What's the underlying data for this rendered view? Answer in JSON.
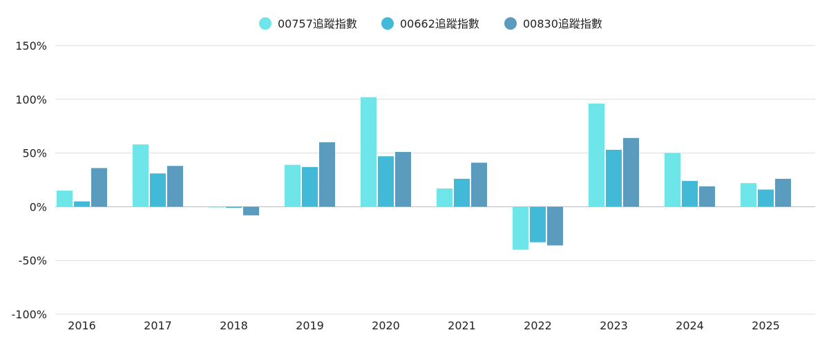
{
  "chart_data": {
    "type": "bar",
    "categories": [
      "2016",
      "2017",
      "2018",
      "2019",
      "2020",
      "2021",
      "2022",
      "2023",
      "2024",
      "2025"
    ],
    "series": [
      {
        "name": "00757追蹤指數",
        "color": "#6ee5e8",
        "values": [
          15,
          58,
          0,
          39,
          102,
          17,
          -40,
          96,
          50,
          22
        ]
      },
      {
        "name": "00662追蹤指數",
        "color": "#43b9d8",
        "values": [
          5,
          31,
          -1,
          37,
          47,
          26,
          -33,
          53,
          24,
          16
        ]
      },
      {
        "name": "00830追蹤指數",
        "color": "#5b9bbd",
        "values": [
          36,
          38,
          -8,
          60,
          51,
          41,
          -36,
          64,
          19,
          26
        ]
      }
    ],
    "ylim": [
      -100,
      150
    ],
    "yticks": [
      "150%",
      "100%",
      "50%",
      "0%",
      "-50%",
      "-100%"
    ],
    "ytick_values": [
      150,
      100,
      50,
      0,
      -50,
      -100
    ],
    "legend_position": "top-center",
    "grid": true
  }
}
